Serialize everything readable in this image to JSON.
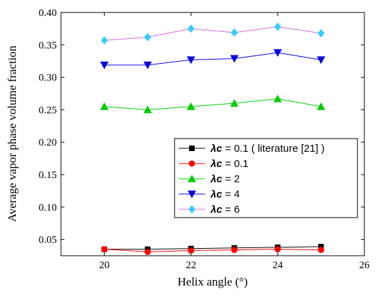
{
  "chart_data": {
    "type": "line",
    "xlabel": "Helix angle (°)",
    "ylabel": "Average vapor phase volume fraction",
    "xlim": [
      19,
      26
    ],
    "ylim": [
      0.025,
      0.4
    ],
    "xticks": [
      20,
      22,
      24,
      26
    ],
    "yticks": [
      0.05,
      0.1,
      0.15,
      0.2,
      0.25,
      0.3,
      0.35,
      0.4
    ],
    "xtick_labels": [
      "20",
      "22",
      "24",
      "26"
    ],
    "ytick_labels": [
      "0.05",
      "0.10",
      "0.15",
      "0.20",
      "0.25",
      "0.30",
      "0.35",
      "0.40"
    ],
    "grid": false,
    "legend_position": "center-right",
    "series": [
      {
        "name": "λc = 0.1 ( literature [21] )",
        "legend_symbol": "λc",
        "legend_rest": " = 0.1 ( literature [21] )",
        "color": "#000000",
        "marker": "square",
        "x": [
          20,
          21,
          22,
          23,
          24,
          25
        ],
        "y": [
          0.035,
          0.035,
          0.036,
          0.037,
          0.038,
          0.039
        ]
      },
      {
        "name": "λc = 0.1",
        "legend_symbol": "λc",
        "legend_rest": " = 0.1",
        "color": "#ff0000",
        "marker": "circle",
        "x": [
          20,
          21,
          22,
          23,
          24,
          25
        ],
        "y": [
          0.035,
          0.031,
          0.033,
          0.034,
          0.035,
          0.034
        ]
      },
      {
        "name": "λc = 2",
        "legend_symbol": "λc",
        "legend_rest": " = 2",
        "color": "#00cc00",
        "marker": "triangle-up",
        "x": [
          20,
          21,
          22,
          23,
          24,
          25
        ],
        "y": [
          0.255,
          0.25,
          0.255,
          0.26,
          0.267,
          0.255
        ]
      },
      {
        "name": "λc = 4",
        "legend_symbol": "λc",
        "legend_rest": " = 4",
        "color": "#0000dd",
        "marker": "triangle-down",
        "x": [
          20,
          21,
          22,
          23,
          24,
          25
        ],
        "y": [
          0.319,
          0.319,
          0.327,
          0.329,
          0.338,
          0.327
        ]
      },
      {
        "name": "λc = 6",
        "legend_symbol": "λc",
        "legend_rest": " = 6",
        "color": "#33ccff",
        "line_color": "#dd66dd",
        "marker": "diamond",
        "x": [
          20,
          21,
          22,
          23,
          24,
          25
        ],
        "y": [
          0.357,
          0.362,
          0.375,
          0.369,
          0.378,
          0.368
        ]
      }
    ]
  }
}
